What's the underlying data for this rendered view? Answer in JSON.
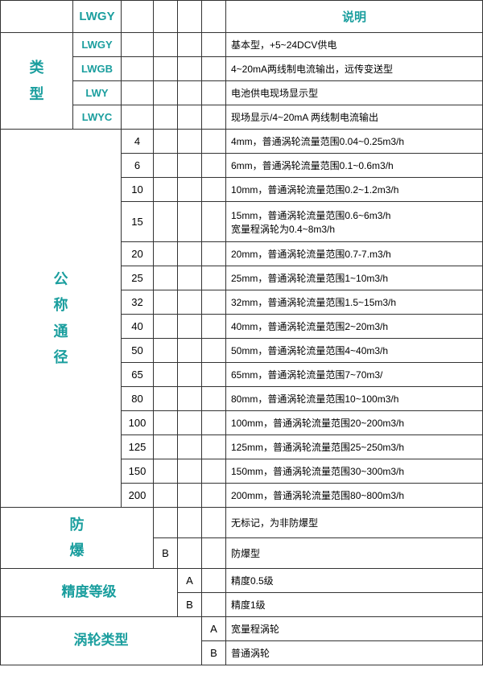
{
  "header": {
    "lwgy": "LWGY",
    "shuoming": "说明"
  },
  "leixing": {
    "label": "类\n型",
    "rows": [
      {
        "code": "LWGY",
        "desc": "基本型，+5~24DCV供电"
      },
      {
        "code": "LWGB",
        "desc": "4~20mA两线制电流输出，远传变送型"
      },
      {
        "code": "LWY",
        "desc": "电池供电现场显示型"
      },
      {
        "code": "LWYC",
        "desc": "现场显示/4~20mA 两线制电流输出"
      }
    ]
  },
  "gongcheng": {
    "label": "公\n称\n通\n径",
    "rows": [
      {
        "code": "4",
        "desc": "4mm，普通涡轮流量范围0.04~0.25m3/h"
      },
      {
        "code": "6",
        "desc": "6mm，普通涡轮流量范围0.1~0.6m3/h"
      },
      {
        "code": "10",
        "desc": "10mm，普通涡轮流量范围0.2~1.2m3/h"
      },
      {
        "code": "15",
        "desc": "15mm，普通涡轮流量范围0.6~6m3/h\n宽量程涡轮为0.4~8m3/h"
      },
      {
        "code": "20",
        "desc": "20mm，普通涡轮流量范围0.7-7.m3/h"
      },
      {
        "code": "25",
        "desc": "25mm，普通涡轮流量范围1~10m3/h"
      },
      {
        "code": "32",
        "desc": "32mm，普通涡轮流量范围1.5~15m3/h"
      },
      {
        "code": "40",
        "desc": "40mm，普通涡轮流量范围2~20m3/h"
      },
      {
        "code": "50",
        "desc": "50mm，普通涡轮流量范围4~40m3/h"
      },
      {
        "code": "65",
        "desc": "65mm，普通涡轮流量范围7~70m3/"
      },
      {
        "code": "80",
        "desc": "80mm，普通涡轮流量范围10~100m3/h"
      },
      {
        "code": "100",
        "desc": "100mm，普通涡轮流量范围20~200m3/h"
      },
      {
        "code": "125",
        "desc": "125mm，普通涡轮流量范围25~250m3/h"
      },
      {
        "code": "150",
        "desc": "150mm，普通涡轮流量范围30~300m3/h"
      },
      {
        "code": "200",
        "desc": "200mm，普通涡轮流量范围80~800m3/h"
      }
    ]
  },
  "fangbao": {
    "label": "防\n爆",
    "rows": [
      {
        "code": "",
        "desc": "无标记，为非防爆型"
      },
      {
        "code": "B",
        "desc": "防爆型"
      }
    ]
  },
  "jingdu": {
    "label": "精度等级",
    "rows": [
      {
        "code": "A",
        "desc": "精度0.5级"
      },
      {
        "code": "B",
        "desc": "精度1级"
      }
    ]
  },
  "wolun": {
    "label": "涡轮类型",
    "rows": [
      {
        "code": "A",
        "desc": "宽量程涡轮"
      },
      {
        "code": "B",
        "desc": "普通涡轮"
      }
    ]
  }
}
